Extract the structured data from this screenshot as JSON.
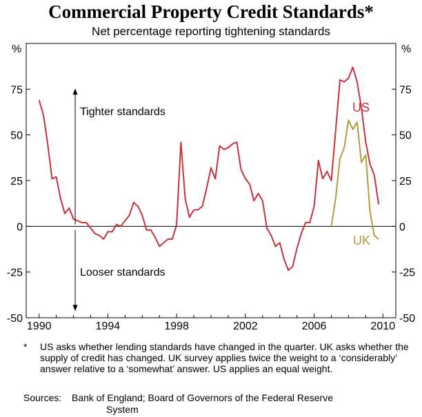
{
  "title": "Commercial Property Credit Standards*",
  "subtitle": "Net percentage reporting tightening standards",
  "footnote": {
    "marker": "*",
    "text": "US asks whether lending standards have changed in the quarter. UK asks whether the supply of credit has changed. UK survey applies twice the weight to a ‘considerably’ answer relative to a ‘somewhat’ answer. US applies an equal weight."
  },
  "sources": {
    "label": "Sources:",
    "line1": "Bank of England; Board of Governors of the Federal Reserve",
    "line2": "System"
  },
  "colors": {
    "us": "#c8303a",
    "uk": "#b59a3a"
  },
  "chart_data": {
    "type": "line",
    "title": "Commercial Property Credit Standards*",
    "subtitle": "Net percentage reporting tightening standards",
    "ylabel_left": "%",
    "ylabel_right": "%",
    "xlim": [
      1989.25,
      2010.75
    ],
    "ylim": [
      -50,
      100
    ],
    "x_ticks": [
      1990,
      1994,
      1998,
      2002,
      2006,
      2010
    ],
    "y_ticks": [
      -50,
      -25,
      0,
      25,
      50,
      75
    ],
    "annotations": {
      "up": "Tighter standards",
      "down": "Looser standards"
    },
    "series": [
      {
        "name": "US",
        "points": [
          [
            1990.0,
            69
          ],
          [
            1990.25,
            61
          ],
          [
            1990.5,
            45
          ],
          [
            1990.75,
            26
          ],
          [
            1991.0,
            27
          ],
          [
            1991.25,
            15
          ],
          [
            1991.5,
            7
          ],
          [
            1991.75,
            10
          ],
          [
            1992.0,
            4
          ],
          [
            1992.25,
            3
          ],
          [
            1992.5,
            2
          ],
          [
            1992.75,
            2
          ],
          [
            1993.0,
            -1
          ],
          [
            1993.25,
            -4
          ],
          [
            1993.5,
            -5
          ],
          [
            1993.75,
            -7
          ],
          [
            1994.0,
            -3
          ],
          [
            1994.25,
            -3
          ],
          [
            1994.5,
            1
          ],
          [
            1994.75,
            0
          ],
          [
            1995.0,
            3
          ],
          [
            1995.25,
            6
          ],
          [
            1995.5,
            13
          ],
          [
            1995.75,
            11
          ],
          [
            1996.0,
            6
          ],
          [
            1996.25,
            -2
          ],
          [
            1996.5,
            -2
          ],
          [
            1996.75,
            -6
          ],
          [
            1997.0,
            -11
          ],
          [
            1997.25,
            -9
          ],
          [
            1997.5,
            -7
          ],
          [
            1997.75,
            -7
          ],
          [
            1998.0,
            1
          ],
          [
            1998.25,
            46
          ],
          [
            1998.5,
            15
          ],
          [
            1998.75,
            5
          ],
          [
            1999.0,
            9
          ],
          [
            1999.25,
            9
          ],
          [
            1999.5,
            11
          ],
          [
            1999.75,
            21
          ],
          [
            2000.0,
            32
          ],
          [
            2000.25,
            26
          ],
          [
            2000.5,
            44
          ],
          [
            2000.75,
            42
          ],
          [
            2001.0,
            43
          ],
          [
            2001.25,
            45
          ],
          [
            2001.5,
            46
          ],
          [
            2001.75,
            31
          ],
          [
            2002.0,
            26
          ],
          [
            2002.25,
            23
          ],
          [
            2002.5,
            14
          ],
          [
            2002.75,
            18
          ],
          [
            2003.0,
            14
          ],
          [
            2003.25,
            -1
          ],
          [
            2003.5,
            -5
          ],
          [
            2003.75,
            -11
          ],
          [
            2004.0,
            -9
          ],
          [
            2004.25,
            -18
          ],
          [
            2004.5,
            -24
          ],
          [
            2004.75,
            -22
          ],
          [
            2005.0,
            -12
          ],
          [
            2005.25,
            -4
          ],
          [
            2005.5,
            2
          ],
          [
            2005.75,
            2
          ],
          [
            2006.0,
            11
          ],
          [
            2006.25,
            36
          ],
          [
            2006.5,
            26
          ],
          [
            2006.75,
            30
          ],
          [
            2007.0,
            25
          ],
          [
            2007.25,
            52
          ],
          [
            2007.5,
            80
          ],
          [
            2007.75,
            79
          ],
          [
            2008.0,
            81
          ],
          [
            2008.25,
            87
          ],
          [
            2008.5,
            79
          ],
          [
            2008.75,
            65
          ],
          [
            2009.0,
            46
          ],
          [
            2009.25,
            34
          ],
          [
            2009.5,
            28
          ],
          [
            2009.75,
            12
          ]
        ]
      },
      {
        "name": "UK",
        "points": [
          [
            2007.0,
            0
          ],
          [
            2007.25,
            15
          ],
          [
            2007.5,
            37
          ],
          [
            2007.75,
            43
          ],
          [
            2008.0,
            58
          ],
          [
            2008.25,
            53
          ],
          [
            2008.5,
            57
          ],
          [
            2008.75,
            35
          ],
          [
            2009.0,
            39
          ],
          [
            2009.25,
            8
          ],
          [
            2009.5,
            -5
          ],
          [
            2009.75,
            -7
          ]
        ]
      }
    ]
  }
}
